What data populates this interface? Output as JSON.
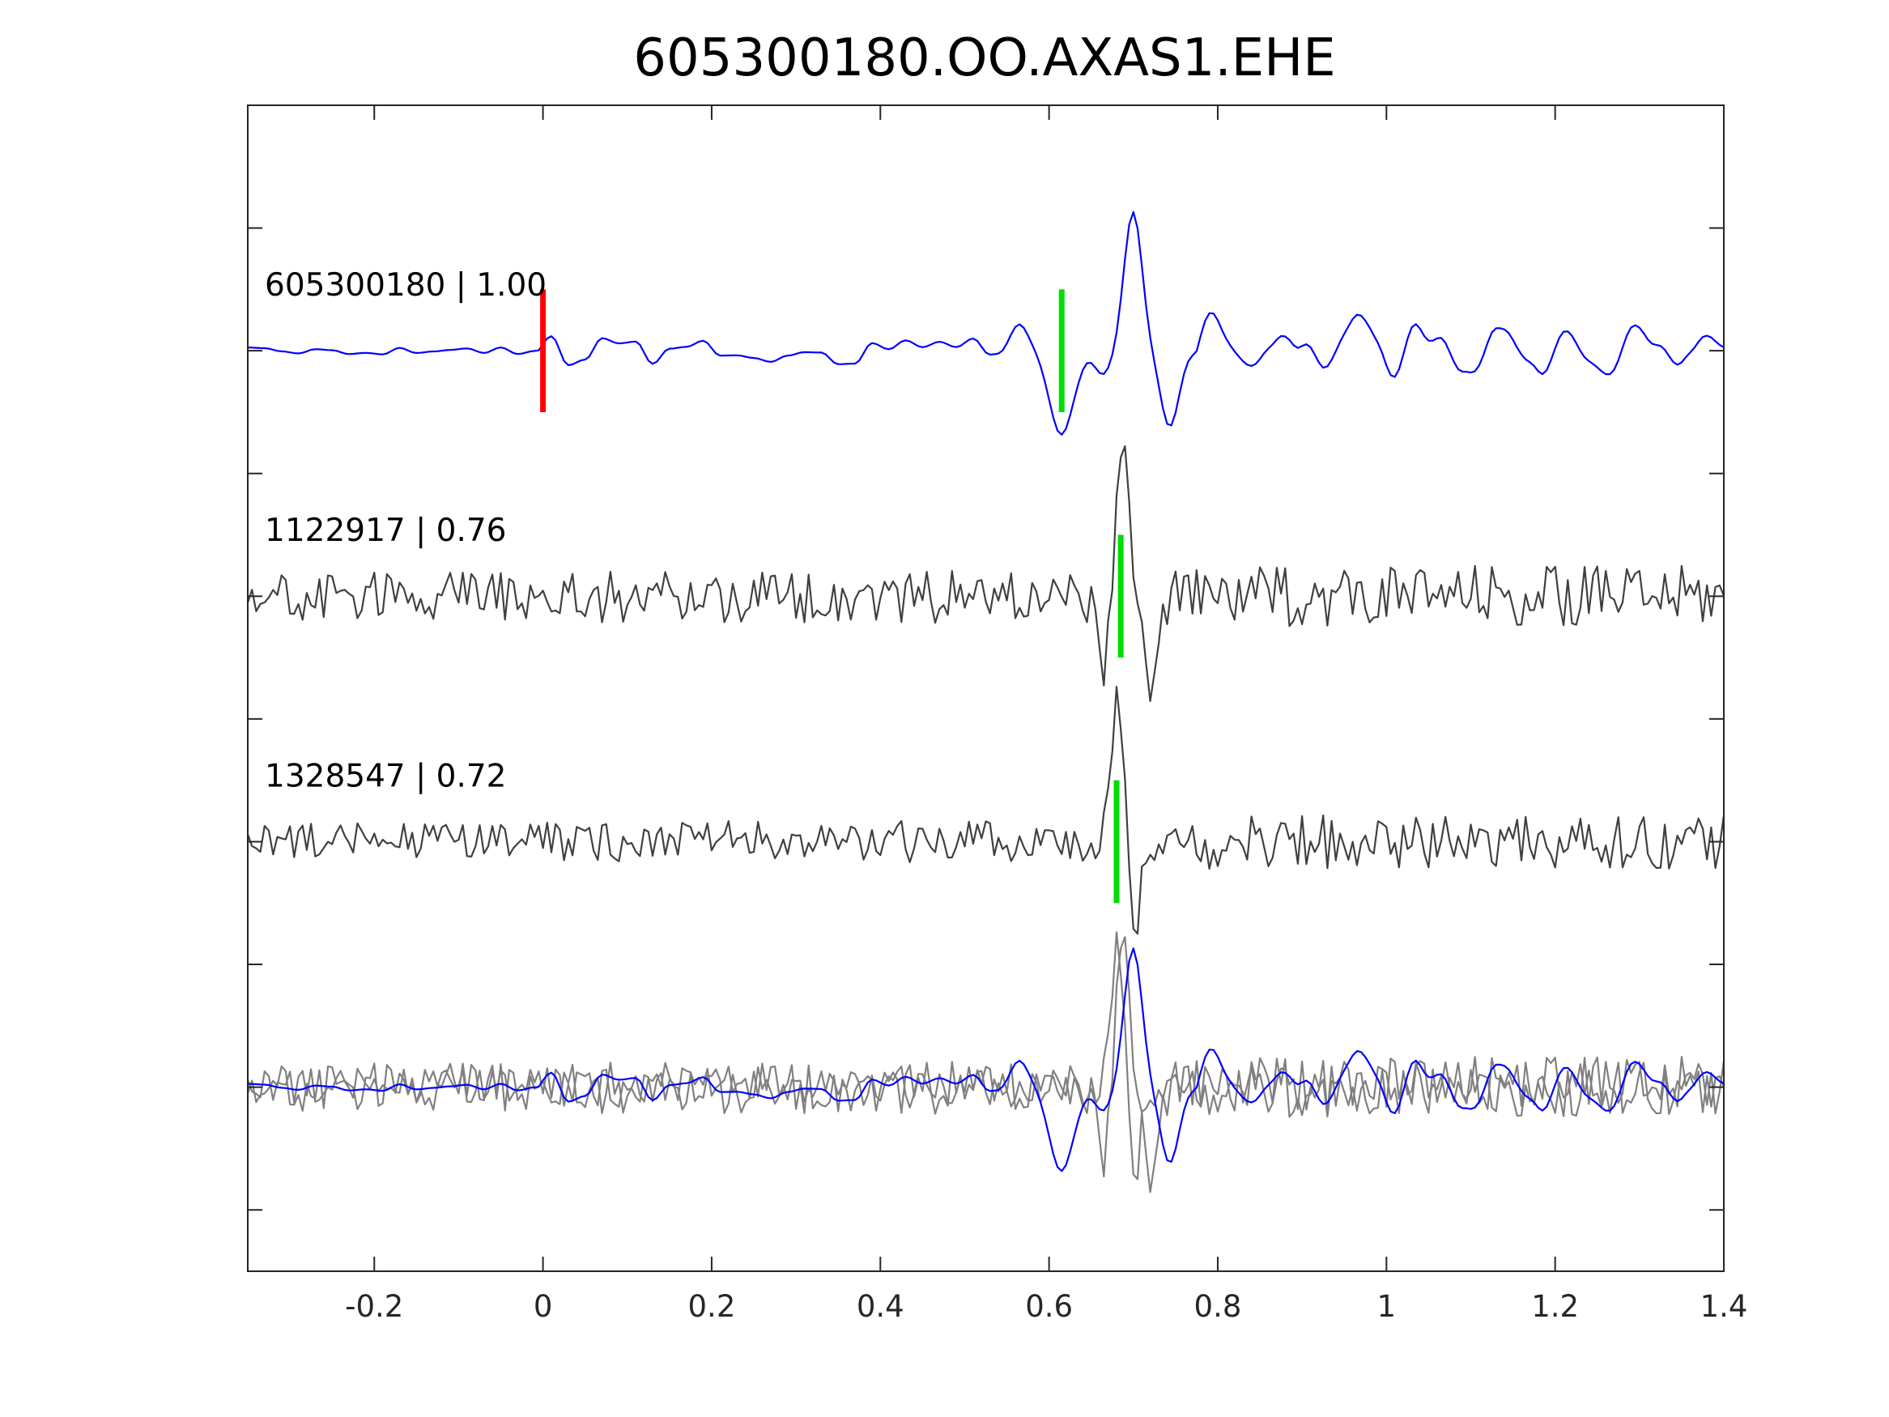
{
  "chart_data": {
    "type": "line",
    "title": "605300180.OO.AXAS1.EHE",
    "xlabel": "",
    "ylabel": "",
    "xlim": [
      -0.35,
      1.4
    ],
    "ylim": [
      -7.5,
      2
    ],
    "x_ticks": [
      "-0.2",
      "0",
      "0.2",
      "0.4",
      "0.6",
      "0.8",
      "1",
      "1.2",
      "1.4"
    ],
    "x_tick_values": [
      -0.2,
      0,
      0.2,
      0.4,
      0.6,
      0.8,
      1,
      1.2,
      1.4
    ],
    "y_tick_values": [
      -7,
      -6,
      -5,
      -4,
      -3,
      -2,
      -1,
      0,
      1
    ],
    "grid": false,
    "colors": {
      "template": "#0000ff",
      "neighbor": "#404040",
      "overlay_neighbor": "#808080",
      "origin_pick": "#ff0000",
      "phase_pick": "#00dd00"
    },
    "series": [
      {
        "name": "605300180",
        "label": "605300180 | 1.00",
        "offset": 0,
        "color": "#0000ff",
        "smooth": true,
        "seed": 11,
        "noise_pre": 0.03,
        "noise_post": 0.12,
        "noise_late": 0.3,
        "features": [
          [
            0.565,
            0.3,
            0.012
          ],
          [
            0.615,
            -0.62,
            0.014
          ],
          [
            0.66,
            -0.15,
            0.01
          ],
          [
            0.7,
            1.2,
            0.011
          ],
          [
            0.742,
            -0.58,
            0.011
          ]
        ],
        "picks": [
          {
            "t": 0,
            "color": "#ff0000"
          },
          {
            "t": 0.615,
            "color": "#00dd00"
          }
        ]
      },
      {
        "name": "1122917",
        "label": "1122917 | 0.76",
        "offset": -2,
        "color": "#404040",
        "smooth": false,
        "seed": 23,
        "noise_pre": 0.2,
        "noise_post": 0.22,
        "noise_late": 0.25,
        "features": [
          [
            0.662,
            -0.65,
            0.006
          ],
          [
            0.688,
            1.15,
            0.008
          ],
          [
            0.722,
            -0.9,
            0.007
          ]
        ],
        "picks": [
          {
            "t": 0.685,
            "color": "#00dd00"
          }
        ]
      },
      {
        "name": "1328547",
        "label": "1328547 | 0.72",
        "offset": -4,
        "color": "#404040",
        "smooth": false,
        "seed": 37,
        "noise_pre": 0.15,
        "noise_post": 0.17,
        "noise_late": 0.22,
        "features": [
          [
            0.68,
            1.15,
            0.007
          ],
          [
            0.703,
            -0.72,
            0.006
          ]
        ],
        "picks": [
          {
            "t": 0.68,
            "color": "#00dd00"
          }
        ]
      }
    ],
    "overlay": {
      "offset": -6,
      "neighbor_color": "#808080"
    }
  }
}
